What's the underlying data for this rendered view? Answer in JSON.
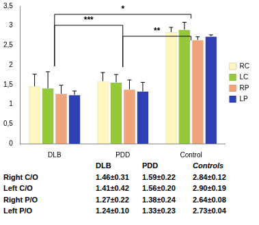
{
  "chart_data": {
    "type": "bar",
    "categories": [
      "DLB",
      "PDD",
      "Control"
    ],
    "series": [
      {
        "name": "RC",
        "color": "#fff5bf",
        "values": [
          1.46,
          1.59,
          2.84
        ],
        "errors": [
          0.31,
          0.22,
          0.12
        ]
      },
      {
        "name": "LC",
        "color": "#96c83c",
        "values": [
          1.41,
          1.56,
          2.9
        ],
        "errors": [
          0.42,
          0.2,
          0.19
        ]
      },
      {
        "name": "RP",
        "color": "#f0a47c",
        "values": [
          1.27,
          1.38,
          2.64
        ],
        "errors": [
          0.22,
          0.24,
          0.08
        ]
      },
      {
        "name": "LP",
        "color": "#2f3fb4",
        "values": [
          1.24,
          1.33,
          2.73
        ],
        "errors": [
          0.1,
          0.23,
          0.04
        ]
      }
    ],
    "ylim": [
      0,
      3.5
    ],
    "yticks": [
      0,
      {
        "value": 0.5,
        "label": "0,5"
      },
      1,
      {
        "value": 1.5,
        "label": "1,5"
      },
      2,
      {
        "value": 2.5,
        "label": "2,5"
      },
      3,
      {
        "value": 3.5,
        "label": "3,5"
      }
    ],
    "grid": false,
    "legend": "right",
    "annotations": [
      {
        "from": "DLB",
        "to": "Control",
        "label": "*"
      },
      {
        "from": "DLB",
        "to": "PDD",
        "label": "***"
      },
      {
        "from": "PDD",
        "to": "Control",
        "label": "**"
      }
    ]
  },
  "table": {
    "header": [
      "DLB",
      "PDD",
      "Controls"
    ],
    "rows": [
      {
        "label": "Right C/O",
        "cells": [
          "1.46±0.31",
          "1.59±0.22",
          "2.84±0.12"
        ]
      },
      {
        "label": "Left C/O",
        "cells": [
          "1.41±0.42",
          "1.56±0.20",
          "2.90±0.19"
        ]
      },
      {
        "label": "Right P/O",
        "cells": [
          "1.27±0.22",
          "1.38±0.24",
          "2.64±0.08"
        ]
      },
      {
        "label": "Left P/O",
        "cells": [
          "1.24±0.10",
          "1.33±0.23",
          "2.73±0.04"
        ]
      }
    ]
  }
}
